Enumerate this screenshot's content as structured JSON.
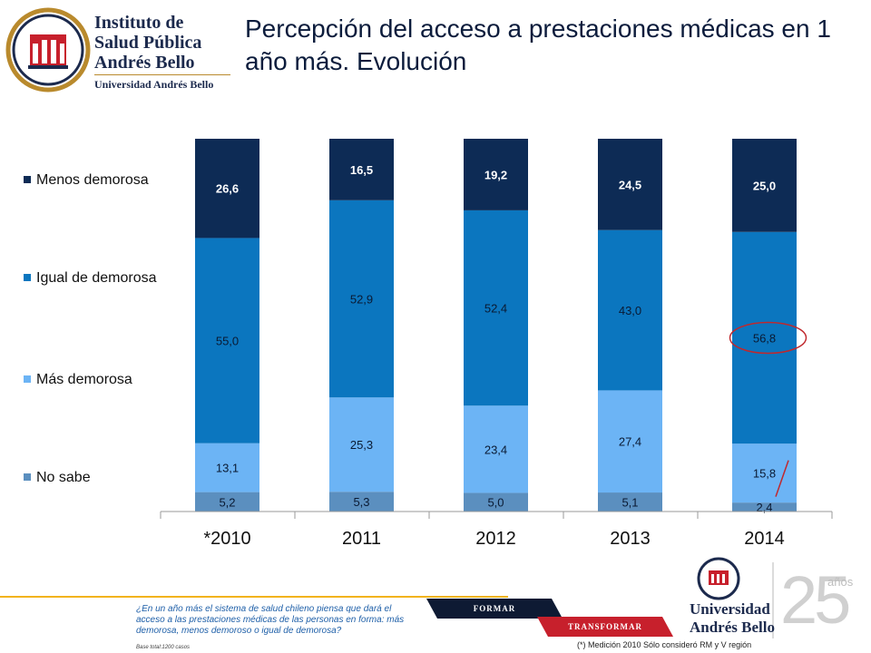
{
  "header": {
    "institute_line1": "Instituto de",
    "institute_line2": "Salud Pública",
    "institute_line3": "Andrés Bello",
    "institute_line4": "Universidad Andrés Bello",
    "title": "Percepción del acceso a prestaciones médicas en 1 año más. Evolución"
  },
  "chart_data": {
    "type": "bar",
    "stacked": true,
    "percent_stacked": true,
    "title": "",
    "xlabel": "",
    "ylabel": "",
    "categories": [
      "*2010",
      "2011",
      "2012",
      "2013",
      "2014"
    ],
    "legend_position": "left",
    "grid": false,
    "series": [
      {
        "name": "No sabe",
        "color": "#5b8fbf",
        "values": [
          5.2,
          5.3,
          5.0,
          5.1,
          2.4
        ],
        "labels": [
          "5,2",
          "5,3",
          "5,0",
          "5,1",
          "2,4"
        ]
      },
      {
        "name": "Más demorosa",
        "color": "#6cb4f5",
        "values": [
          13.1,
          25.3,
          23.4,
          27.4,
          15.8
        ],
        "labels": [
          "13,1",
          "25,3",
          "23,4",
          "27,4",
          "15,8"
        ]
      },
      {
        "name": "Igual de demorosa",
        "color": "#0b76bf",
        "values": [
          55.0,
          52.9,
          52.4,
          43.0,
          56.8
        ],
        "labels": [
          "55,0",
          "52,9",
          "52,4",
          "43,0",
          "56,8"
        ]
      },
      {
        "name": "Menos demorosa",
        "color": "#0d2b55",
        "values": [
          26.6,
          16.5,
          19.2,
          24.5,
          25.0
        ],
        "labels": [
          "26,6",
          "16,5",
          "19,2",
          "24,5",
          "25,0"
        ]
      }
    ],
    "legend_order": [
      "Menos demorosa",
      "Igual de demorosa",
      "Más demorosa",
      "No sabe"
    ],
    "annotations": [
      {
        "type": "ellipse",
        "target": "2014 · Igual de demorosa",
        "color": "#c0282d"
      },
      {
        "type": "slash",
        "target": "2014 · Más demorosa",
        "color": "#c0282d"
      }
    ]
  },
  "footer": {
    "question": "¿En un año más el sistema de salud chileno piensa que dará el acceso a las prestaciones médicas de las personas en forma: más demorosa, menos demoroso o igual de demorosa?",
    "base": "Base total:1200  casos",
    "note": "(*) Medición 2010 Sólo consideró RM y V región",
    "ribbon_formar": "FORMAR",
    "ribbon_transformar": "TRANSFORMAR",
    "university_line1": "Universidad",
    "university_line2": "Andrés Bello",
    "anniversary_number": "25",
    "anniversary_word": "años"
  },
  "colors": {
    "navy": "#1c2a4d",
    "red": "#c7202c",
    "gold": "#f2b31c"
  }
}
